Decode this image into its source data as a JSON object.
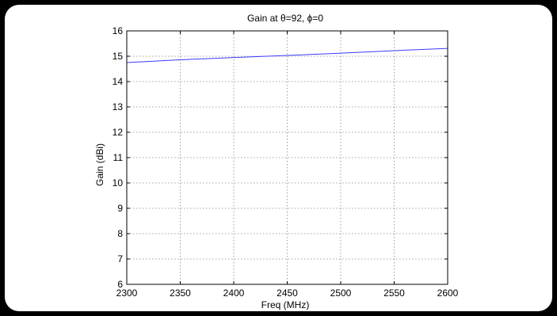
{
  "chart_data": {
    "type": "line",
    "title": "Gain at θ=92, ϕ=0",
    "xlabel": "Freq (MHz)",
    "ylabel": "Gain (dBi)",
    "xlim": [
      2300,
      2600
    ],
    "ylim": [
      6,
      16
    ],
    "xticks": [
      2300,
      2350,
      2400,
      2450,
      2500,
      2550,
      2600
    ],
    "yticks": [
      6,
      7,
      8,
      9,
      10,
      11,
      12,
      13,
      14,
      15,
      16
    ],
    "grid": true,
    "series": [
      {
        "color": "#3a3aff",
        "x": [
          2300,
          2350,
          2400,
          2450,
          2500,
          2550,
          2600
        ],
        "y": [
          14.75,
          14.86,
          14.95,
          15.03,
          15.12,
          15.22,
          15.31
        ]
      }
    ]
  }
}
